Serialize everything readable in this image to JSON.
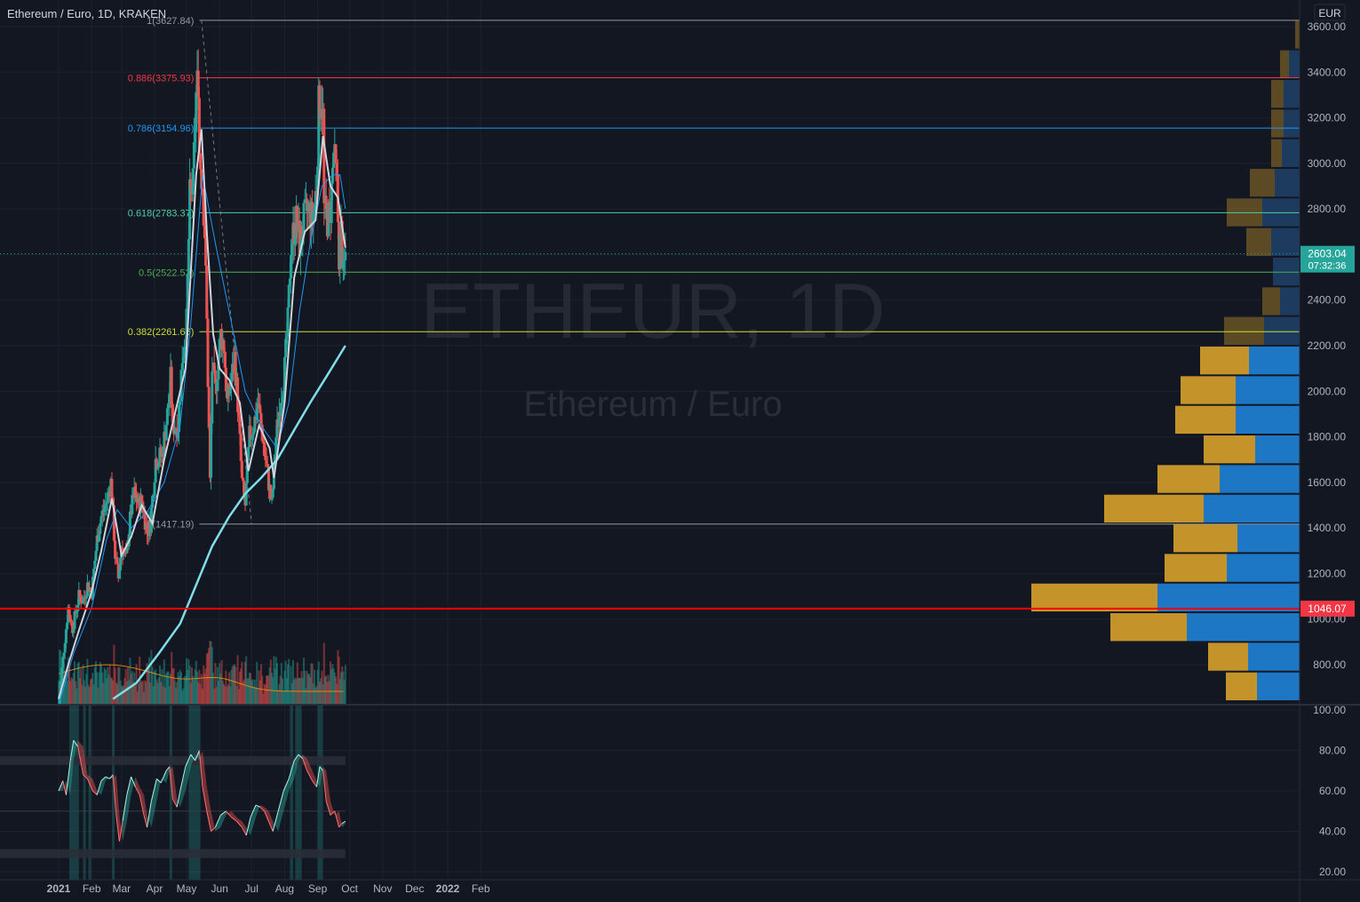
{
  "header": {
    "title": "Ethereum / Euro, 1D, KRAKEN"
  },
  "watermark": {
    "symbol": "ETHEUR, 1D",
    "name": "Ethereum / Euro"
  },
  "currency_label": "EUR",
  "colors": {
    "background": "#131722",
    "up": "#26a69a",
    "down": "#ef5350",
    "vp_up": "#2962ff",
    "vp_down": "#c9a227",
    "ma_fast": "#d1d4dc",
    "ma_mid": "#2196f3",
    "ma_slow": "#80deea",
    "vol_ma": "#ff9800",
    "support_line": "#ff0000"
  },
  "chart_data": {
    "type": "candlestick",
    "price_axis": {
      "ticks": [
        "3600.00",
        "3400.00",
        "3200.00",
        "3000.00",
        "2800.00",
        "2600.00",
        "2400.00",
        "2200.00",
        "2000.00",
        "1800.00",
        "1600.00",
        "1400.00",
        "1200.00",
        "1000.00",
        "800.00"
      ],
      "ylim": [
        650,
        3680
      ]
    },
    "time_axis": {
      "ticks": [
        "2021",
        "Feb",
        "Mar",
        "Apr",
        "May",
        "Jun",
        "Jul",
        "Aug",
        "Sep",
        "Oct",
        "Nov",
        "Dec",
        "2022",
        "Feb"
      ],
      "bold": [
        "2021",
        "2022"
      ]
    },
    "last_price": {
      "value": "2603.04",
      "countdown": "07:32:36"
    },
    "horizontal_line": {
      "value": "1046.07"
    },
    "fibonacci": [
      {
        "level": "1",
        "price": "3627.84",
        "color": "#9598a1"
      },
      {
        "level": "0.886",
        "price": "3375.93",
        "color": "#f23645"
      },
      {
        "level": "0.786",
        "price": "3154.96",
        "color": "#2196f3"
      },
      {
        "level": "0.618",
        "price": "2783.37",
        "color": "#4dd0a1"
      },
      {
        "level": "0.5",
        "price": "2522.52",
        "color": "#4caf50"
      },
      {
        "level": "0.382",
        "price": "2261.66",
        "color": "#cddc39"
      },
      {
        "level": "0",
        "price": "1417.19",
        "color": "#9598a1"
      }
    ],
    "price_path": [
      [
        "2021-01-01",
        610
      ],
      [
        "2021-01-04",
        780
      ],
      [
        "2021-01-10",
        1050
      ],
      [
        "2021-01-14",
        960
      ],
      [
        "2021-01-20",
        1100
      ],
      [
        "2021-01-24",
        1080
      ],
      [
        "2021-01-28",
        1150
      ],
      [
        "2021-02-01",
        1120
      ],
      [
        "2021-02-06",
        1350
      ],
      [
        "2021-02-10",
        1450
      ],
      [
        "2021-02-14",
        1500
      ],
      [
        "2021-02-19",
        1600
      ],
      [
        "2021-02-20",
        1550
      ],
      [
        "2021-02-23",
        1280
      ],
      [
        "2021-02-26",
        1180
      ],
      [
        "2021-03-01",
        1320
      ],
      [
        "2021-03-05",
        1260
      ],
      [
        "2021-03-10",
        1480
      ],
      [
        "2021-03-13",
        1550
      ],
      [
        "2021-03-17",
        1500
      ],
      [
        "2021-03-20",
        1520
      ],
      [
        "2021-03-25",
        1380
      ],
      [
        "2021-03-28",
        1420
      ],
      [
        "2021-04-02",
        1700
      ],
      [
        "2021-04-08",
        1720
      ],
      [
        "2021-04-13",
        1900
      ],
      [
        "2021-04-16",
        2050
      ],
      [
        "2021-04-18",
        1850
      ],
      [
        "2021-04-23",
        1850
      ],
      [
        "2021-04-27",
        2150
      ],
      [
        "2021-05-01",
        2300
      ],
      [
        "2021-05-04",
        2850
      ],
      [
        "2021-05-07",
        2900
      ],
      [
        "2021-05-10",
        3300
      ],
      [
        "2021-05-12",
        3380
      ],
      [
        "2021-05-13",
        3050
      ],
      [
        "2021-05-16",
        2900
      ],
      [
        "2021-05-18",
        2700
      ],
      [
        "2021-05-20",
        2300
      ],
      [
        "2021-05-21",
        2050
      ],
      [
        "2021-05-23",
        1600
      ],
      [
        "2021-05-25",
        2100
      ],
      [
        "2021-05-28",
        2000
      ],
      [
        "2021-06-02",
        2250
      ],
      [
        "2021-06-05",
        2200
      ],
      [
        "2021-06-08",
        1950
      ],
      [
        "2021-06-12",
        2050
      ],
      [
        "2021-06-15",
        2150
      ],
      [
        "2021-06-18",
        1950
      ],
      [
        "2021-06-22",
        1600
      ],
      [
        "2021-06-25",
        1500
      ],
      [
        "2021-06-29",
        1800
      ],
      [
        "2021-07-03",
        1850
      ],
      [
        "2021-07-07",
        1950
      ],
      [
        "2021-07-10",
        1850
      ],
      [
        "2021-07-14",
        1700
      ],
      [
        "2021-07-17",
        1600
      ],
      [
        "2021-07-20",
        1500
      ],
      [
        "2021-07-24",
        1800
      ],
      [
        "2021-07-28",
        1950
      ],
      [
        "2021-08-01",
        2100
      ],
      [
        "2021-08-04",
        2300
      ],
      [
        "2021-08-07",
        2650
      ],
      [
        "2021-08-12",
        2750
      ],
      [
        "2021-08-15",
        2650
      ],
      [
        "2021-08-19",
        2750
      ],
      [
        "2021-08-23",
        2800
      ],
      [
        "2021-08-27",
        2750
      ],
      [
        "2021-08-31",
        2900
      ],
      [
        "2021-09-02",
        3250
      ],
      [
        "2021-09-04",
        3300
      ],
      [
        "2021-09-06",
        3200
      ],
      [
        "2021-09-07",
        2800
      ],
      [
        "2021-09-10",
        2750
      ],
      [
        "2021-09-13",
        2800
      ],
      [
        "2021-09-16",
        3050
      ],
      [
        "2021-09-19",
        2900
      ],
      [
        "2021-09-21",
        2600
      ],
      [
        "2021-09-23",
        2700
      ],
      [
        "2021-09-25",
        2500
      ],
      [
        "2021-09-27",
        2603
      ]
    ],
    "ma_fast": [
      [
        "2021-01-01",
        650
      ],
      [
        "2021-01-10",
        800
      ],
      [
        "2021-01-20",
        950
      ],
      [
        "2021-02-01",
        1120
      ],
      [
        "2021-02-10",
        1300
      ],
      [
        "2021-02-20",
        1530
      ],
      [
        "2021-03-01",
        1280
      ],
      [
        "2021-03-10",
        1360
      ],
      [
        "2021-03-20",
        1500
      ],
      [
        "2021-03-30",
        1420
      ],
      [
        "2021-04-10",
        1700
      ],
      [
        "2021-04-20",
        1900
      ],
      [
        "2021-04-30",
        2100
      ],
      [
        "2021-05-10",
        2950
      ],
      [
        "2021-05-15",
        3150
      ],
      [
        "2021-05-20",
        2700
      ],
      [
        "2021-05-26",
        2250
      ],
      [
        "2021-06-01",
        2100
      ],
      [
        "2021-06-10",
        2050
      ],
      [
        "2021-06-20",
        1950
      ],
      [
        "2021-06-28",
        1650
      ],
      [
        "2021-07-08",
        1850
      ],
      [
        "2021-07-18",
        1750
      ],
      [
        "2021-07-22",
        1620
      ],
      [
        "2021-08-01",
        1950
      ],
      [
        "2021-08-10",
        2500
      ],
      [
        "2021-08-20",
        2700
      ],
      [
        "2021-08-30",
        2750
      ],
      [
        "2021-09-06",
        3120
      ],
      [
        "2021-09-13",
        2900
      ],
      [
        "2021-09-20",
        2850
      ],
      [
        "2021-09-27",
        2630
      ]
    ],
    "ma_mid": [
      [
        "2021-01-01",
        620
      ],
      [
        "2021-01-15",
        850
      ],
      [
        "2021-02-01",
        1050
      ],
      [
        "2021-02-15",
        1350
      ],
      [
        "2021-02-25",
        1480
      ],
      [
        "2021-03-10",
        1400
      ],
      [
        "2021-03-25",
        1470
      ],
      [
        "2021-04-10",
        1600
      ],
      [
        "2021-04-25",
        1850
      ],
      [
        "2021-05-05",
        2300
      ],
      [
        "2021-05-16",
        2950
      ],
      [
        "2021-05-28",
        2650
      ],
      [
        "2021-06-10",
        2350
      ],
      [
        "2021-06-25",
        2000
      ],
      [
        "2021-07-10",
        1850
      ],
      [
        "2021-07-25",
        1750
      ],
      [
        "2021-08-05",
        1950
      ],
      [
        "2021-08-15",
        2350
      ],
      [
        "2021-08-25",
        2650
      ],
      [
        "2021-09-05",
        2900
      ],
      [
        "2021-09-15",
        2950
      ],
      [
        "2021-09-22",
        2950
      ],
      [
        "2021-09-27",
        2800
      ]
    ],
    "ma_slow": [
      [
        "2021-02-21",
        650
      ],
      [
        "2021-03-15",
        720
      ],
      [
        "2021-04-05",
        850
      ],
      [
        "2021-04-25",
        980
      ],
      [
        "2021-05-10",
        1150
      ],
      [
        "2021-05-25",
        1320
      ],
      [
        "2021-06-10",
        1450
      ],
      [
        "2021-06-25",
        1550
      ],
      [
        "2021-07-10",
        1620
      ],
      [
        "2021-07-25",
        1700
      ],
      [
        "2021-08-10",
        1830
      ],
      [
        "2021-08-25",
        1950
      ],
      [
        "2021-09-10",
        2070
      ],
      [
        "2021-09-27",
        2200
      ]
    ],
    "volume_profile": [
      {
        "price": 3565,
        "up": 0,
        "down": 5
      },
      {
        "price": 3435,
        "up": 12,
        "down": 10
      },
      {
        "price": 3305,
        "up": 18,
        "down": 14
      },
      {
        "price": 3175,
        "up": 18,
        "down": 14
      },
      {
        "price": 3045,
        "up": 20,
        "down": 12
      },
      {
        "price": 2915,
        "up": 28,
        "down": 28
      },
      {
        "price": 2785,
        "up": 42,
        "down": 40
      },
      {
        "price": 2655,
        "up": 32,
        "down": 28
      },
      {
        "price": 2525,
        "up": 30,
        "down": 0
      },
      {
        "price": 2395,
        "up": 22,
        "down": 20
      },
      {
        "price": 2265,
        "up": 40,
        "down": 45
      },
      {
        "price": 2135,
        "up": 57,
        "down": 55
      },
      {
        "price": 2005,
        "up": 72,
        "down": 62
      },
      {
        "price": 1875,
        "up": 72,
        "down": 68
      },
      {
        "price": 1745,
        "up": 50,
        "down": 58
      },
      {
        "price": 1615,
        "up": 90,
        "down": 70
      },
      {
        "price": 1485,
        "up": 108,
        "down": 112
      },
      {
        "price": 1355,
        "up": 70,
        "down": 72
      },
      {
        "price": 1225,
        "up": 82,
        "down": 70
      },
      {
        "price": 1095,
        "up": 160,
        "down": 142
      },
      {
        "price": 965,
        "up": 127,
        "down": 86
      },
      {
        "price": 835,
        "up": 58,
        "down": 45
      },
      {
        "price": 705,
        "up": 48,
        "down": 35
      }
    ],
    "oscillator": {
      "ticks": [
        "100.00",
        "80.00",
        "60.00",
        "40.00",
        "20.00"
      ],
      "ylim": [
        15,
        103
      ],
      "bands": [
        75,
        50,
        29
      ],
      "path": [
        [
          "2021-01-01",
          60
        ],
        [
          "2021-01-05",
          65
        ],
        [
          "2021-01-08",
          58
        ],
        [
          "2021-01-12",
          75
        ],
        [
          "2021-01-15",
          85
        ],
        [
          "2021-01-19",
          82
        ],
        [
          "2021-01-24",
          68
        ],
        [
          "2021-01-28",
          66
        ],
        [
          "2021-02-02",
          60
        ],
        [
          "2021-02-06",
          58
        ],
        [
          "2021-02-10",
          65
        ],
        [
          "2021-02-14",
          67
        ],
        [
          "2021-02-18",
          66
        ],
        [
          "2021-02-21",
          68
        ],
        [
          "2021-02-24",
          48
        ],
        [
          "2021-02-27",
          35
        ],
        [
          "2021-03-02",
          45
        ],
        [
          "2021-03-06",
          58
        ],
        [
          "2021-03-10",
          67
        ],
        [
          "2021-03-14",
          62
        ],
        [
          "2021-03-18",
          58
        ],
        [
          "2021-03-22",
          48
        ],
        [
          "2021-03-25",
          42
        ],
        [
          "2021-03-29",
          55
        ],
        [
          "2021-04-03",
          66
        ],
        [
          "2021-04-07",
          64
        ],
        [
          "2021-04-12",
          70
        ],
        [
          "2021-04-15",
          72
        ],
        [
          "2021-04-18",
          56
        ],
        [
          "2021-04-22",
          52
        ],
        [
          "2021-04-25",
          60
        ],
        [
          "2021-04-30",
          72
        ],
        [
          "2021-05-05",
          78
        ],
        [
          "2021-05-09",
          75
        ],
        [
          "2021-05-13",
          80
        ],
        [
          "2021-05-16",
          62
        ],
        [
          "2021-05-20",
          50
        ],
        [
          "2021-05-24",
          40
        ],
        [
          "2021-05-28",
          42
        ],
        [
          "2021-06-02",
          48
        ],
        [
          "2021-06-07",
          50
        ],
        [
          "2021-06-12",
          47
        ],
        [
          "2021-06-17",
          45
        ],
        [
          "2021-06-22",
          42
        ],
        [
          "2021-06-26",
          38
        ],
        [
          "2021-06-30",
          47
        ],
        [
          "2021-07-05",
          53
        ],
        [
          "2021-07-09",
          52
        ],
        [
          "2021-07-13",
          50
        ],
        [
          "2021-07-17",
          45
        ],
        [
          "2021-07-21",
          40
        ],
        [
          "2021-07-26",
          50
        ],
        [
          "2021-07-31",
          60
        ],
        [
          "2021-08-05",
          66
        ],
        [
          "2021-08-10",
          75
        ],
        [
          "2021-08-14",
          78
        ],
        [
          "2021-08-18",
          76
        ],
        [
          "2021-08-22",
          70
        ],
        [
          "2021-08-27",
          65
        ],
        [
          "2021-08-31",
          62
        ],
        [
          "2021-09-03",
          72
        ],
        [
          "2021-09-06",
          70
        ],
        [
          "2021-09-09",
          55
        ],
        [
          "2021-09-13",
          48
        ],
        [
          "2021-09-17",
          50
        ],
        [
          "2021-09-21",
          42
        ],
        [
          "2021-09-24",
          44
        ],
        [
          "2021-09-27",
          45
        ]
      ],
      "highlight_periods": [
        [
          "2021-01-11",
          "2021-01-20"
        ],
        [
          "2021-01-24",
          "2021-01-25"
        ],
        [
          "2021-01-29",
          "2021-01-30"
        ],
        [
          "2021-02-20",
          "2021-02-21"
        ],
        [
          "2021-04-15",
          "2021-04-16"
        ],
        [
          "2021-05-03",
          "2021-05-14"
        ],
        [
          "2021-08-06",
          "2021-08-09"
        ],
        [
          "2021-08-11",
          "2021-08-17"
        ],
        [
          "2021-09-01",
          "2021-09-06"
        ]
      ]
    }
  }
}
